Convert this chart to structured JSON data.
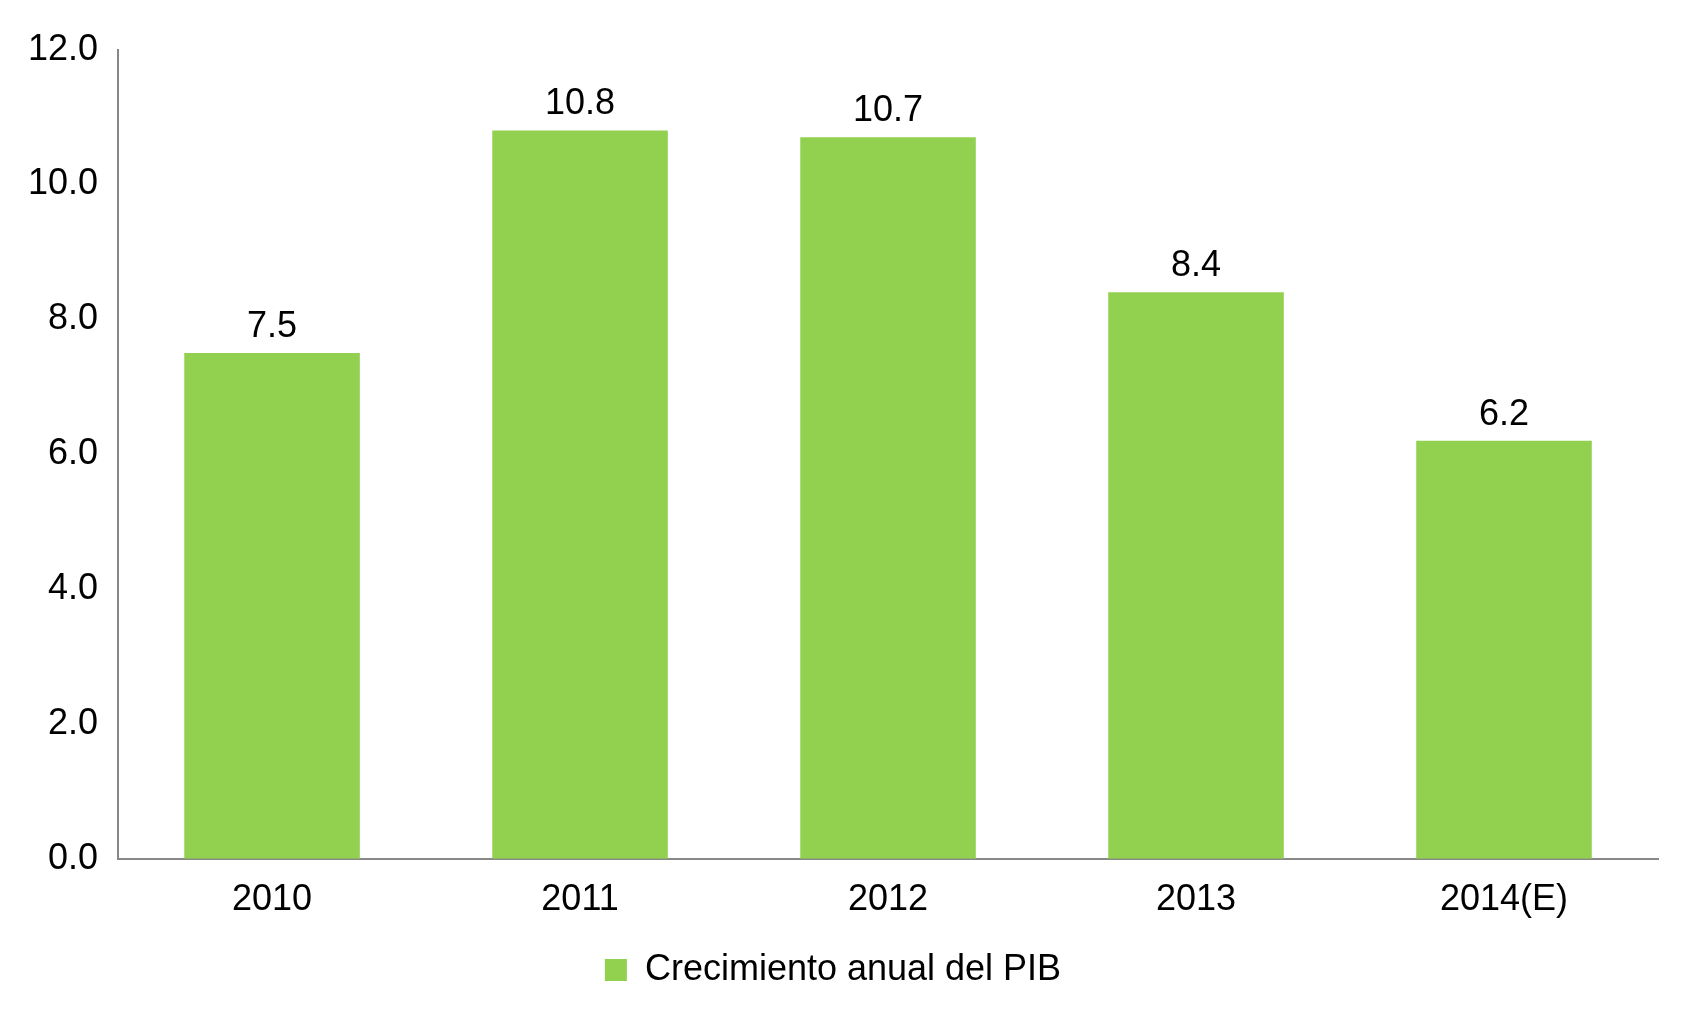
{
  "chart_data": {
    "type": "bar",
    "categories": [
      "2010",
      "2011",
      "2012",
      "2013",
      "2014(E)"
    ],
    "series": [
      {
        "name": "Crecimiento anual del PIB",
        "color": "#92d050",
        "values": [
          7.5,
          10.8,
          10.7,
          8.4,
          6.2
        ]
      }
    ],
    "ylim": [
      0,
      12
    ],
    "yticks": [
      {
        "value": 0,
        "label": "0.0"
      },
      {
        "value": 2,
        "label": "2.0"
      },
      {
        "value": 4,
        "label": "4.0"
      },
      {
        "value": 6,
        "label": "6.0"
      },
      {
        "value": 8,
        "label": "8.0"
      },
      {
        "value": 10,
        "label": "10.0"
      },
      {
        "value": 12,
        "label": "12.0"
      }
    ],
    "grid": false,
    "legend": "bottom",
    "data_labels": true
  }
}
